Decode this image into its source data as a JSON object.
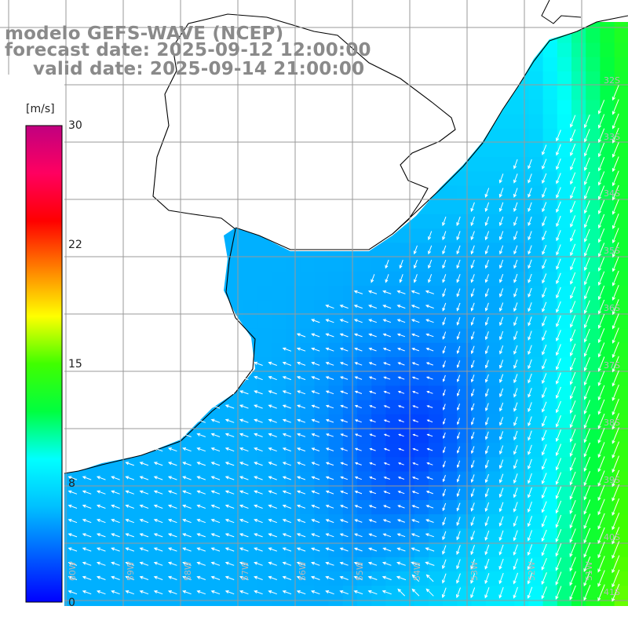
{
  "title": {
    "model": "modelo GEFS-WAVE (NCEP)",
    "forecast": "forecast date: 2025-09-12 12:00:00",
    "valid": "valid date: 2025-09-14 21:00:00"
  },
  "colorbar": {
    "unit": "[m/s]",
    "ticks": [
      "30",
      "22",
      "15",
      "8",
      "0"
    ],
    "colors": [
      "#0000ff",
      "#0060ff",
      "#00c0ff",
      "#00ffff",
      "#00ff40",
      "#40ff00",
      "#ffff00",
      "#ff8000",
      "#ff0000",
      "#ff0060",
      "#c00080"
    ]
  },
  "grid_labels": {
    "longitudes": [
      "60W",
      "59W",
      "58W",
      "57W",
      "56W",
      "55W",
      "54W",
      "53W",
      "52W",
      "51W"
    ],
    "latitudes": [
      "32S",
      "33S",
      "34S",
      "35S",
      "36S",
      "37S",
      "38S",
      "39S",
      "40S",
      "41S"
    ]
  },
  "colors": {
    "land": "#ffffff",
    "coast": "#000000",
    "grid": "#9a9a9a",
    "arrow": "#ffffff",
    "title": "#8a8a8a"
  }
}
